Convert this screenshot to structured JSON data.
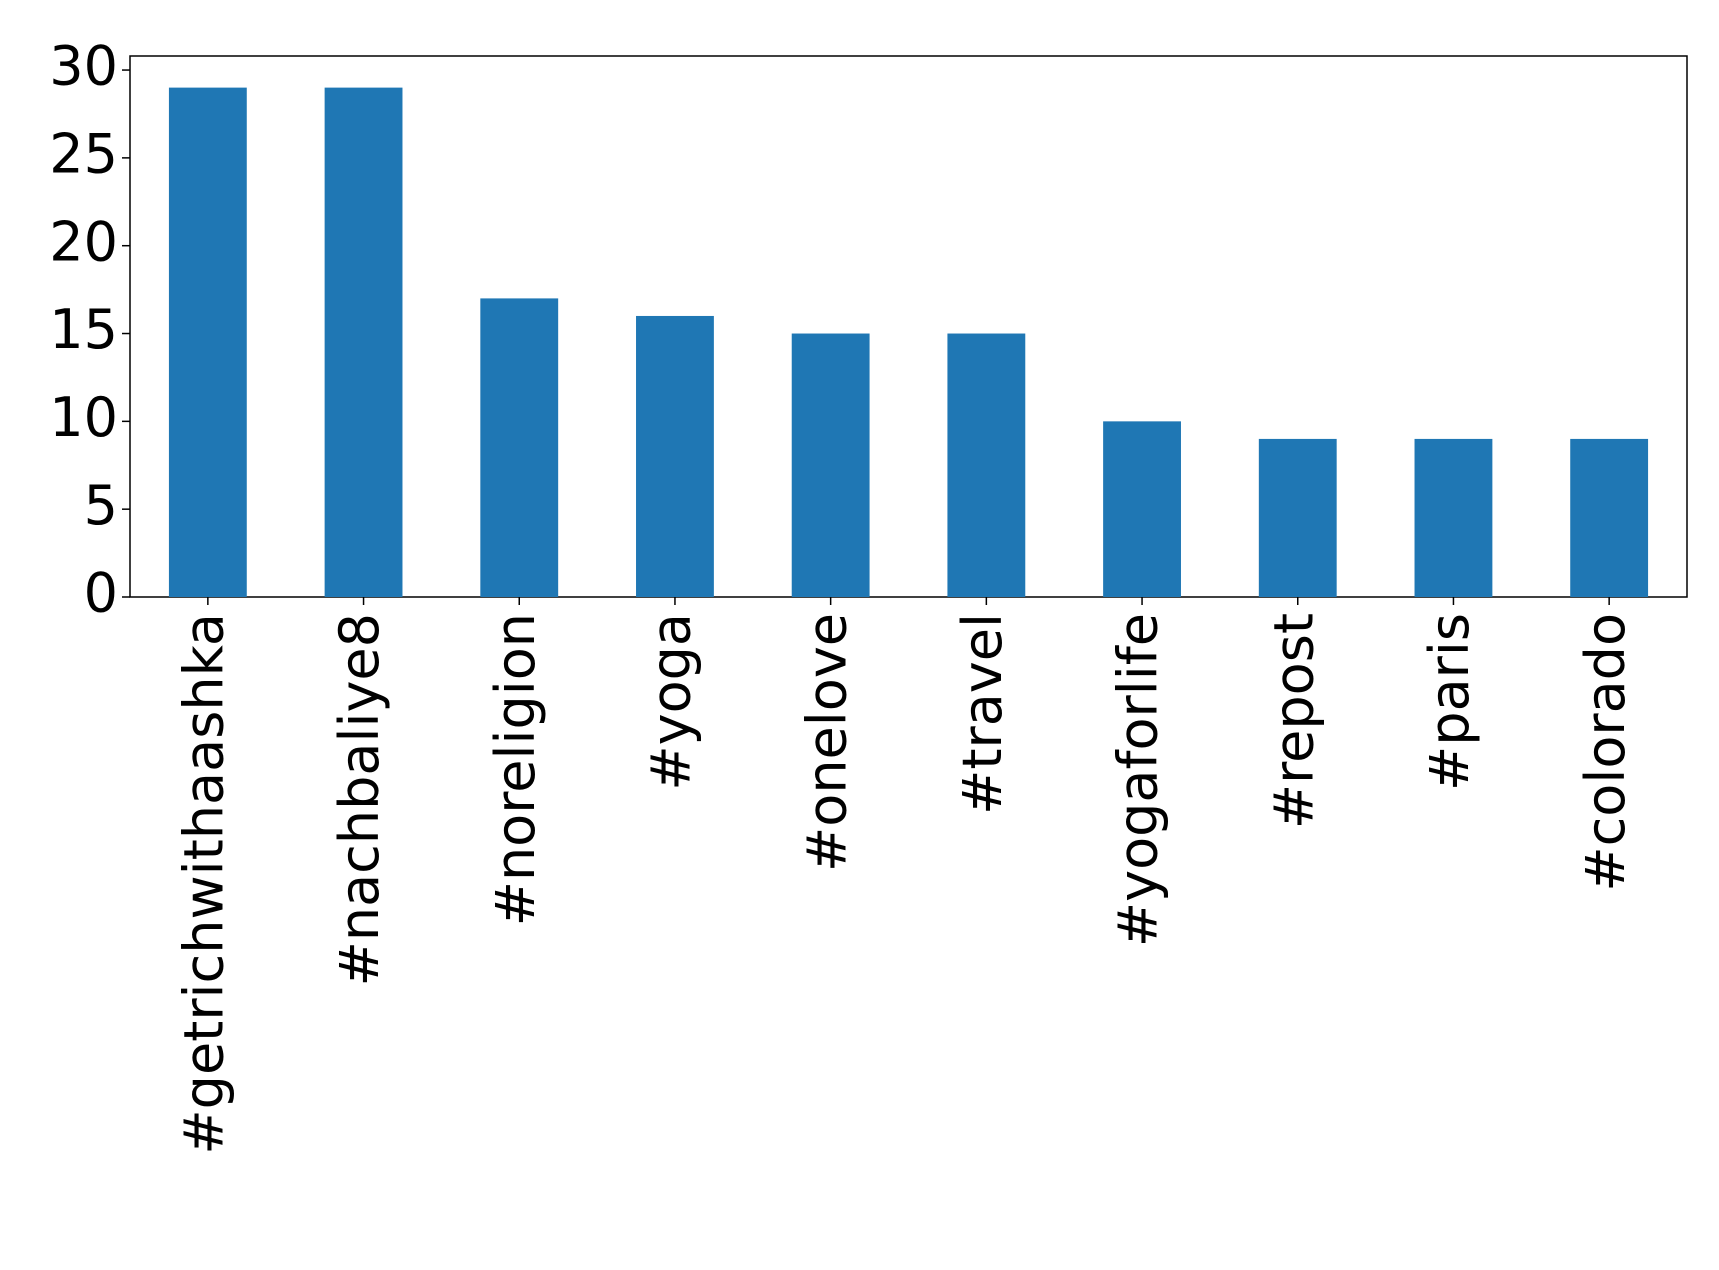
{
  "chart_data": {
    "type": "bar",
    "categories": [
      "#getrichwithaashka",
      "#nachbaliye8",
      "#noreligion",
      "#yoga",
      "#onelove",
      "#travel",
      "#yogaforlife",
      "#repost",
      "#paris",
      "#colorado"
    ],
    "values": [
      29,
      29,
      17,
      16,
      15,
      15,
      10,
      9,
      9,
      9
    ],
    "color": "#1f77b4",
    "ylim": [
      0,
      30.8
    ],
    "yticks": [
      0,
      5,
      10,
      15,
      20,
      25,
      30
    ],
    "grid": false
  }
}
